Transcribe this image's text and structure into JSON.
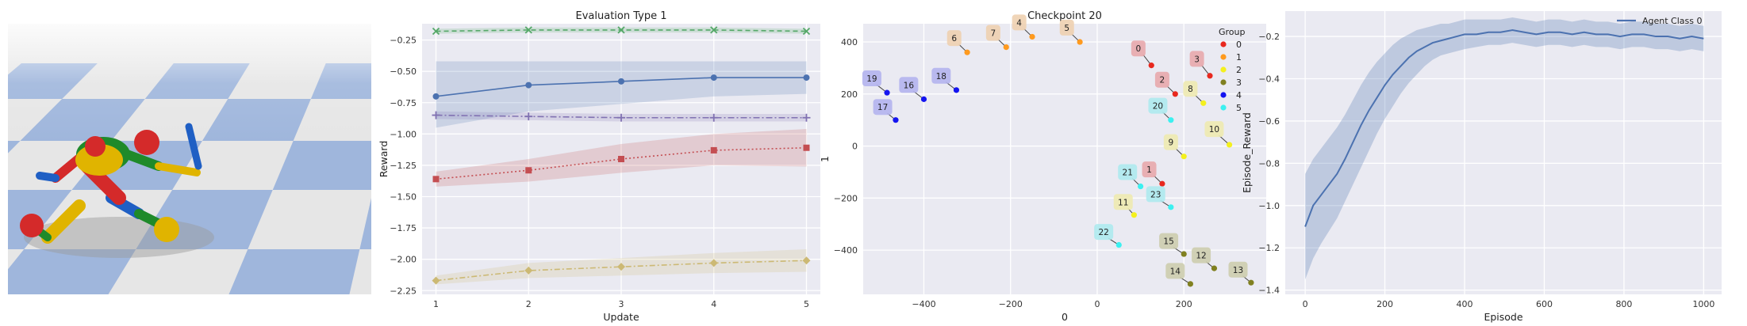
{
  "colors": {
    "panel_bg": "#eaeaf2",
    "grid": "#ffffff",
    "floor_light": "#e6e6e6",
    "floor_blue": "#9fb6dc",
    "sky": "#ffffff"
  },
  "scene": {
    "icon": "humanoid-robot-render",
    "body_colors": [
      "#d42a2a",
      "#1f5fc4",
      "#e0b400",
      "#1f8a2a"
    ]
  },
  "chart_data": [
    {
      "type": "line",
      "title": "Evaluation Type 1",
      "xlabel": "Update",
      "ylabel": "Reward",
      "x": [
        1,
        2,
        3,
        4,
        5
      ],
      "xlim": [
        0.85,
        5.15
      ],
      "ylim": [
        -2.28,
        -0.12
      ],
      "xticks": [
        1,
        2,
        3,
        4,
        5
      ],
      "yticks": [
        -0.25,
        -0.5,
        -0.75,
        -1.0,
        -1.25,
        -1.5,
        -1.75,
        -2.0,
        -2.25
      ],
      "ytick_labels": [
        "−0.25",
        "−0.50",
        "−0.75",
        "−1.00",
        "−1.25",
        "−1.50",
        "−1.75",
        "−2.00",
        "−2.25"
      ],
      "grid": true,
      "series": [
        {
          "values": [
            -0.18,
            -0.17,
            -0.17,
            -0.17,
            -0.18
          ],
          "lower": [
            -0.2,
            -0.19,
            -0.19,
            -0.19,
            -0.2
          ],
          "upper": [
            -0.16,
            -0.15,
            -0.15,
            -0.15,
            -0.16
          ],
          "color": "#55a868",
          "marker": "x",
          "dash": "6,4"
        },
        {
          "values": [
            -0.7,
            -0.61,
            -0.58,
            -0.55,
            -0.55
          ],
          "lower": [
            -0.95,
            -0.82,
            -0.76,
            -0.7,
            -0.68
          ],
          "upper": [
            -0.42,
            -0.42,
            -0.42,
            -0.42,
            -0.42
          ],
          "color": "#4c72b0",
          "marker": "o",
          "dash": ""
        },
        {
          "values": [
            -0.85,
            -0.86,
            -0.87,
            -0.87,
            -0.87
          ],
          "lower": [
            -0.88,
            -0.89,
            -0.9,
            -0.9,
            -0.9
          ],
          "upper": [
            -0.82,
            -0.83,
            -0.84,
            -0.84,
            -0.84
          ],
          "color": "#8172b2",
          "marker": "+",
          "dash": "8,3,2,3"
        },
        {
          "values": [
            -1.36,
            -1.29,
            -1.2,
            -1.13,
            -1.11
          ],
          "lower": [
            -1.42,
            -1.38,
            -1.31,
            -1.25,
            -1.26
          ],
          "upper": [
            -1.3,
            -1.2,
            -1.08,
            -1.0,
            -0.96
          ],
          "color": "#c44e52",
          "marker": "s",
          "dash": "2,3"
        },
        {
          "values": [
            -2.17,
            -2.09,
            -2.06,
            -2.03,
            -2.01
          ],
          "lower": [
            -2.2,
            -2.15,
            -2.13,
            -2.11,
            -2.1
          ],
          "upper": [
            -2.13,
            -2.03,
            -1.99,
            -1.95,
            -1.92
          ],
          "color": "#ccb974",
          "marker": "D",
          "dash": "7,3,2,3"
        }
      ]
    },
    {
      "type": "scatter",
      "title": "Checkpoint 20",
      "xlabel": "0",
      "ylabel": "1",
      "xlim": [
        -540,
        390
      ],
      "ylim": [
        -570,
        470
      ],
      "xticks": [
        -400,
        -200,
        0,
        200
      ],
      "xtick_labels": [
        "−400",
        "−200",
        "0",
        "200"
      ],
      "yticks": [
        400,
        200,
        0,
        -200,
        -400
      ],
      "ytick_labels": [
        "400",
        "200",
        "0",
        "−200",
        "−400"
      ],
      "grid": true,
      "legend": {
        "title": "Group",
        "position": "top-right",
        "entries": [
          "0",
          "1",
          "2",
          "3",
          "4",
          "5"
        ]
      },
      "group_colors": [
        "#e8281e",
        "#ff9a1e",
        "#f4f01e",
        "#808020",
        "#1414f0",
        "#3cf0f0"
      ],
      "label_colors": [
        "#e8a8ac",
        "#eed0b0",
        "#eeeab0",
        "#cdcdae",
        "#b4b4ee",
        "#aeeaee"
      ],
      "points": [
        {
          "label": "0",
          "group": 0,
          "x": 125,
          "y": 310,
          "lx": 95,
          "ly": 375
        },
        {
          "label": "1",
          "group": 0,
          "x": 150,
          "y": -145,
          "lx": 120,
          "ly": -90
        },
        {
          "label": "2",
          "group": 0,
          "x": 180,
          "y": 200,
          "lx": 150,
          "ly": 255
        },
        {
          "label": "3",
          "group": 0,
          "x": 260,
          "y": 270,
          "lx": 230,
          "ly": 335
        },
        {
          "label": "4",
          "group": 1,
          "x": -150,
          "y": 420,
          "lx": -180,
          "ly": 475
        },
        {
          "label": "5",
          "group": 1,
          "x": -40,
          "y": 400,
          "lx": -70,
          "ly": 455
        },
        {
          "label": "6",
          "group": 1,
          "x": -300,
          "y": 360,
          "lx": -330,
          "ly": 415
        },
        {
          "label": "7",
          "group": 1,
          "x": -210,
          "y": 380,
          "lx": -240,
          "ly": 435
        },
        {
          "label": "8",
          "group": 2,
          "x": 245,
          "y": 165,
          "lx": 215,
          "ly": 220
        },
        {
          "label": "9",
          "group": 2,
          "x": 200,
          "y": -40,
          "lx": 170,
          "ly": 15
        },
        {
          "label": "10",
          "group": 2,
          "x": 305,
          "y": 5,
          "lx": 270,
          "ly": 65
        },
        {
          "label": "11",
          "group": 2,
          "x": 85,
          "y": -265,
          "lx": 60,
          "ly": -215
        },
        {
          "label": "12",
          "group": 3,
          "x": 270,
          "y": -470,
          "lx": 240,
          "ly": -420
        },
        {
          "label": "13",
          "group": 3,
          "x": 355,
          "y": -525,
          "lx": 325,
          "ly": -475
        },
        {
          "label": "14",
          "group": 3,
          "x": 215,
          "y": -530,
          "lx": 180,
          "ly": -480
        },
        {
          "label": "15",
          "group": 3,
          "x": 200,
          "y": -415,
          "lx": 165,
          "ly": -365
        },
        {
          "label": "16",
          "group": 4,
          "x": -400,
          "y": 180,
          "lx": -435,
          "ly": 235
        },
        {
          "label": "17",
          "group": 4,
          "x": -465,
          "y": 100,
          "lx": -495,
          "ly": 150
        },
        {
          "label": "18",
          "group": 4,
          "x": -325,
          "y": 215,
          "lx": -360,
          "ly": 270
        },
        {
          "label": "19",
          "group": 4,
          "x": -485,
          "y": 205,
          "lx": -520,
          "ly": 260
        },
        {
          "label": "20",
          "group": 5,
          "x": 170,
          "y": 100,
          "lx": 140,
          "ly": 155
        },
        {
          "label": "21",
          "group": 5,
          "x": 100,
          "y": -155,
          "lx": 70,
          "ly": -100
        },
        {
          "label": "22",
          "group": 5,
          "x": 50,
          "y": -380,
          "lx": 15,
          "ly": -330
        },
        {
          "label": "23",
          "group": 5,
          "x": 170,
          "y": -235,
          "lx": 135,
          "ly": -185
        }
      ]
    },
    {
      "type": "line",
      "title": "",
      "xlabel": "Episode",
      "ylabel": "Episode_Reward",
      "xlim": [
        -50,
        1045
      ],
      "ylim": [
        -1.42,
        -0.08
      ],
      "xticks": [
        0,
        200,
        400,
        600,
        800,
        1000
      ],
      "yticks": [
        -0.2,
        -0.4,
        -0.6,
        -0.8,
        -1.0,
        -1.2,
        -1.4
      ],
      "ytick_labels": [
        "−0.2",
        "−0.4",
        "−0.6",
        "−0.8",
        "−1.0",
        "−1.2",
        "−1.4"
      ],
      "grid": true,
      "legend": {
        "position": "top-right",
        "entries": [
          "Agent Class 0"
        ]
      },
      "series": [
        {
          "name": "Agent Class 0",
          "color": "#4c72b0",
          "x": [
            0,
            20,
            40,
            60,
            80,
            100,
            120,
            140,
            160,
            180,
            200,
            220,
            240,
            260,
            280,
            300,
            320,
            340,
            360,
            380,
            400,
            430,
            460,
            490,
            520,
            550,
            580,
            610,
            640,
            670,
            700,
            730,
            760,
            790,
            820,
            850,
            880,
            910,
            940,
            970,
            1000
          ],
          "values": [
            -1.1,
            -1.0,
            -0.95,
            -0.9,
            -0.85,
            -0.78,
            -0.7,
            -0.62,
            -0.55,
            -0.49,
            -0.43,
            -0.38,
            -0.34,
            -0.3,
            -0.27,
            -0.25,
            -0.23,
            -0.22,
            -0.21,
            -0.2,
            -0.19,
            -0.19,
            -0.18,
            -0.18,
            -0.17,
            -0.18,
            -0.19,
            -0.18,
            -0.18,
            -0.19,
            -0.18,
            -0.19,
            -0.19,
            -0.2,
            -0.19,
            -0.19,
            -0.2,
            -0.2,
            -0.21,
            -0.2,
            -0.21
          ],
          "lower": [
            -1.35,
            -1.25,
            -1.18,
            -1.12,
            -1.06,
            -0.98,
            -0.9,
            -0.82,
            -0.74,
            -0.66,
            -0.59,
            -0.53,
            -0.47,
            -0.42,
            -0.38,
            -0.34,
            -0.31,
            -0.29,
            -0.28,
            -0.27,
            -0.26,
            -0.25,
            -0.24,
            -0.24,
            -0.23,
            -0.24,
            -0.25,
            -0.24,
            -0.24,
            -0.25,
            -0.24,
            -0.25,
            -0.25,
            -0.26,
            -0.25,
            -0.25,
            -0.26,
            -0.26,
            -0.27,
            -0.26,
            -0.27
          ],
          "upper": [
            -0.85,
            -0.78,
            -0.73,
            -0.68,
            -0.63,
            -0.57,
            -0.5,
            -0.43,
            -0.37,
            -0.32,
            -0.28,
            -0.24,
            -0.21,
            -0.19,
            -0.17,
            -0.16,
            -0.15,
            -0.14,
            -0.14,
            -0.13,
            -0.12,
            -0.12,
            -0.12,
            -0.12,
            -0.11,
            -0.12,
            -0.13,
            -0.12,
            -0.12,
            -0.13,
            -0.12,
            -0.13,
            -0.13,
            -0.14,
            -0.13,
            -0.13,
            -0.14,
            -0.14,
            -0.15,
            -0.14,
            -0.15
          ]
        }
      ]
    }
  ]
}
